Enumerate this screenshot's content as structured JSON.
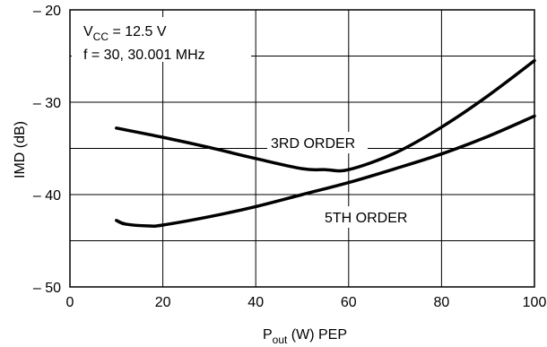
{
  "chart_data": {
    "type": "line",
    "title": "",
    "xlabel": {
      "main": "P",
      "sub": "out",
      "rest": " (W) PEP"
    },
    "ylabel": "IMD (dB)",
    "xlim": [
      0,
      100
    ],
    "ylim": [
      -50,
      -20
    ],
    "x_ticks": [
      0,
      20,
      40,
      60,
      80,
      100
    ],
    "x_tick_labels": [
      "0",
      "20",
      "40",
      "60",
      "80",
      "100"
    ],
    "y_ticks": [
      -50,
      -40,
      -30,
      -20
    ],
    "y_tick_labels": [
      "– 50",
      "– 40",
      "– 30",
      "– 20"
    ],
    "grid": true,
    "annotations": {
      "vcc": {
        "main": "V",
        "sub": "CC",
        "rest": " = 12.5 V"
      },
      "freq": "f = 30, 30.001 MHz"
    },
    "series": [
      {
        "name": "3RD ORDER",
        "x": [
          10,
          20,
          30,
          40,
          50,
          55,
          60,
          70,
          80,
          90,
          100
        ],
        "y": [
          -32.8,
          -33.8,
          -34.9,
          -36.1,
          -37.2,
          -37.3,
          -37.3,
          -35.5,
          -32.7,
          -29.3,
          -25.5
        ]
      },
      {
        "name": "5TH ORDER",
        "x": [
          10,
          12,
          17,
          20,
          30,
          40,
          50,
          60,
          70,
          80,
          90,
          100
        ],
        "y": [
          -42.8,
          -43.2,
          -43.4,
          -43.3,
          -42.4,
          -41.3,
          -40.0,
          -38.7,
          -37.2,
          -35.6,
          -33.7,
          -31.5
        ]
      }
    ]
  }
}
